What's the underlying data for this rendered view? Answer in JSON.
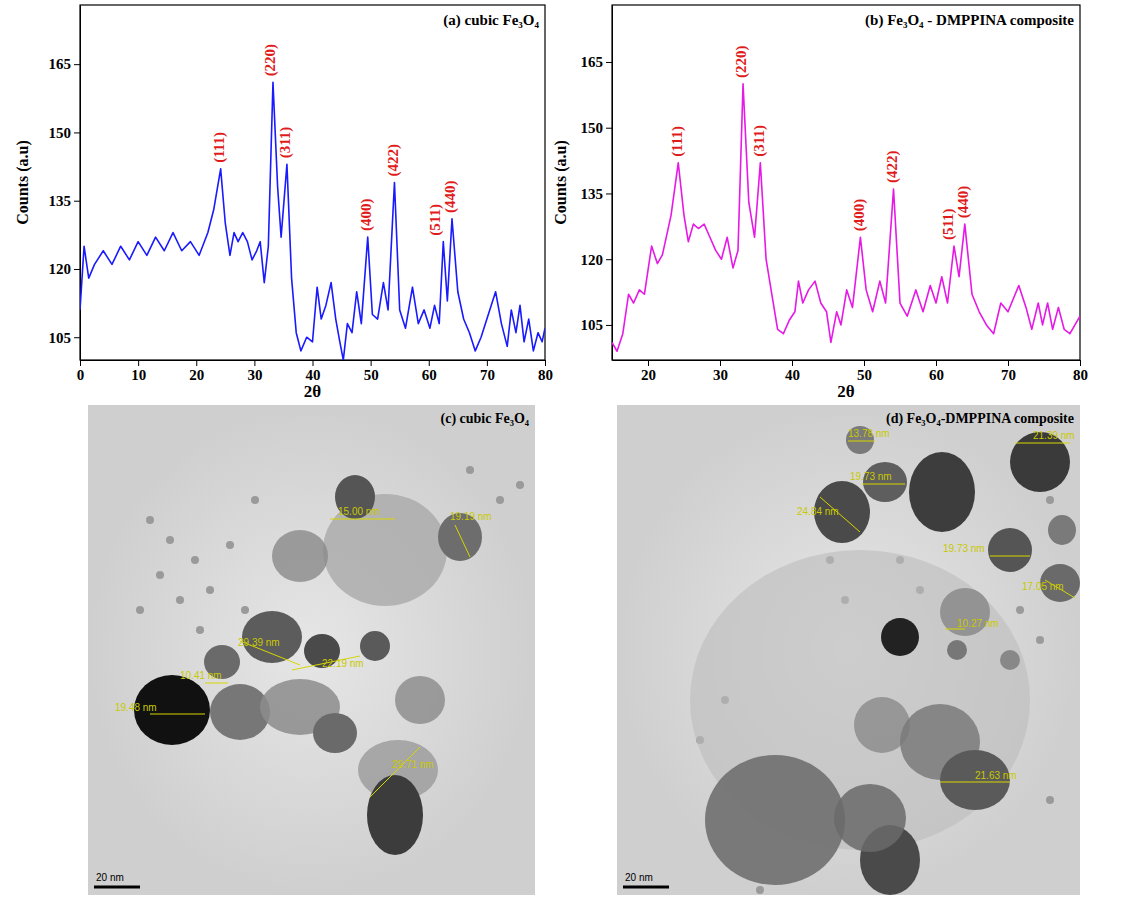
{
  "chart_data": [
    {
      "type": "line",
      "title": "(a) cubic Fe₃O₄",
      "x_label": "2θ",
      "y_label": "Counts (a.u)",
      "color": "#1a1aff",
      "x": [
        0,
        0.7,
        1.5,
        2.5,
        4,
        5.5,
        7,
        8.5,
        10,
        11.5,
        13,
        14.5,
        16,
        17.5,
        19,
        20.5,
        22,
        23,
        24.2,
        25,
        25.8,
        26.5,
        27.2,
        28,
        28.8,
        29.6,
        30.4,
        31,
        31.7,
        32.4,
        33.2,
        34,
        34.6,
        35.6,
        36.4,
        37.2,
        38,
        39,
        40,
        40.8,
        41.5,
        42.3,
        43.2,
        44,
        44.7,
        45.3,
        46,
        46.8,
        47.6,
        48.4,
        49.5,
        50.3,
        51.2,
        52.2,
        53,
        54.1,
        55,
        56,
        57.2,
        58.2,
        59.2,
        60.2,
        61,
        61.8,
        62.5,
        63.2,
        64,
        65,
        66,
        67,
        68,
        69,
        70,
        71.5,
        72.5,
        73.5,
        74.2,
        75,
        75.7,
        76.4,
        77.2,
        78,
        78.8,
        79.5,
        80
      ],
      "values": [
        111,
        125,
        118,
        121,
        124,
        121,
        125,
        122,
        126,
        123,
        127,
        124,
        128,
        124,
        126,
        123,
        128,
        133,
        142,
        130,
        123,
        128,
        126,
        128,
        126,
        122,
        124,
        126,
        117,
        125,
        161,
        138,
        127,
        143,
        118,
        106,
        102,
        105,
        104,
        116,
        109,
        112,
        117,
        109,
        104,
        100,
        108,
        106,
        115,
        108,
        127,
        110,
        109,
        117,
        111,
        139,
        111,
        107,
        116,
        108,
        111,
        107,
        112,
        108,
        126,
        113,
        131,
        115,
        109,
        106,
        102,
        105,
        109,
        115,
        108,
        103,
        111,
        106,
        112,
        104,
        109,
        102,
        106,
        104,
        107
      ],
      "xlim": [
        0,
        80
      ],
      "xticks": [
        0,
        10,
        20,
        30,
        40,
        50,
        60,
        70,
        80
      ],
      "ylim": [
        100,
        178
      ],
      "yticks": [
        105,
        120,
        135,
        150,
        165
      ],
      "annotations": [
        {
          "text": "(111)",
          "x": 24.2,
          "y": 142
        },
        {
          "text": "(220)",
          "x": 33.2,
          "y": 161
        },
        {
          "text": "(311)",
          "x": 35.6,
          "y": 143
        },
        {
          "text": "(400)",
          "x": 49.5,
          "y": 127
        },
        {
          "text": "(422)",
          "x": 54.1,
          "y": 139
        },
        {
          "text": "(511)",
          "x": 62.5,
          "y": 126
        },
        {
          "text": "(440)",
          "x": 64,
          "y": 131
        }
      ]
    },
    {
      "type": "line",
      "title": "(b) Fe₃O₄ - DMPPINA composite",
      "x_label": "2θ",
      "y_label": "Counts (a.u)",
      "color": "#e619e6",
      "x": [
        15,
        15.7,
        16.5,
        17.3,
        18,
        18.8,
        19.5,
        20.5,
        21.3,
        22,
        23.2,
        24.2,
        25,
        25.6,
        26.3,
        27,
        27.8,
        28.6,
        29.4,
        30.2,
        31,
        31.8,
        32.5,
        33.2,
        34,
        34.8,
        35.6,
        36.4,
        37.2,
        38,
        38.8,
        39.6,
        40.4,
        40.9,
        41.5,
        42.3,
        43.2,
        44,
        44.8,
        45.4,
        46.2,
        46.8,
        47.6,
        48.4,
        49.5,
        50.3,
        51.2,
        52.2,
        53,
        54.1,
        55,
        56,
        57.2,
        58.2,
        59.2,
        60,
        60.8,
        61.6,
        62.5,
        63.2,
        64,
        65,
        66,
        67,
        68,
        69,
        70,
        71.5,
        72.5,
        73.3,
        74.2,
        74.8,
        75.5,
        76.2,
        77,
        77.8,
        78.6,
        79.3,
        80
      ],
      "values": [
        101,
        99,
        103,
        112,
        110,
        113,
        112,
        123,
        119,
        121,
        130,
        142,
        130,
        124,
        128,
        127,
        128,
        125,
        122,
        120,
        125,
        118,
        122,
        160,
        133,
        125,
        142,
        120,
        112,
        104,
        103,
        106,
        108,
        115,
        110,
        113,
        115,
        110,
        108,
        101,
        108,
        105,
        113,
        109,
        125,
        113,
        108,
        115,
        110,
        136,
        110,
        107,
        113,
        108,
        114,
        110,
        116,
        110,
        123,
        116,
        128,
        112,
        108,
        105,
        103,
        110,
        108,
        114,
        109,
        104,
        110,
        105,
        110,
        104,
        109,
        104,
        103,
        105,
        107
      ],
      "xlim": [
        15,
        80
      ],
      "xticks": [
        20,
        30,
        40,
        50,
        60,
        70,
        80
      ],
      "ylim": [
        97,
        178
      ],
      "yticks": [
        105,
        120,
        135,
        150,
        165
      ],
      "annotations": [
        {
          "text": "(111)",
          "x": 24.2,
          "y": 142
        },
        {
          "text": "(220)",
          "x": 33.2,
          "y": 160
        },
        {
          "text": "(311)",
          "x": 35.6,
          "y": 142
        },
        {
          "text": "(400)",
          "x": 49.5,
          "y": 125
        },
        {
          "text": "(422)",
          "x": 54.1,
          "y": 136
        },
        {
          "text": "(511)",
          "x": 62.5,
          "y": 123
        },
        {
          "text": "(440)",
          "x": 64,
          "y": 128
        }
      ]
    }
  ],
  "images": [
    {
      "title": "(c) cubic Fe₃O₄",
      "scale_bar": "20 nm",
      "measurements": [
        "15.00 nm",
        "19.19 nm",
        "29.39 nm",
        "10.41 nm",
        "22.19 nm",
        "19.48 nm",
        "29.71 nm"
      ]
    },
    {
      "title": "(d) Fe₃O₄-DMPPINA composite",
      "scale_bar": "20 nm",
      "measurements": [
        "13.78 nm",
        "21.39 nm",
        "19.73 nm",
        "24.84 nm",
        "19.73 nm",
        "17.05 nm",
        "10.27 nm",
        "21.63 nm"
      ]
    }
  ]
}
